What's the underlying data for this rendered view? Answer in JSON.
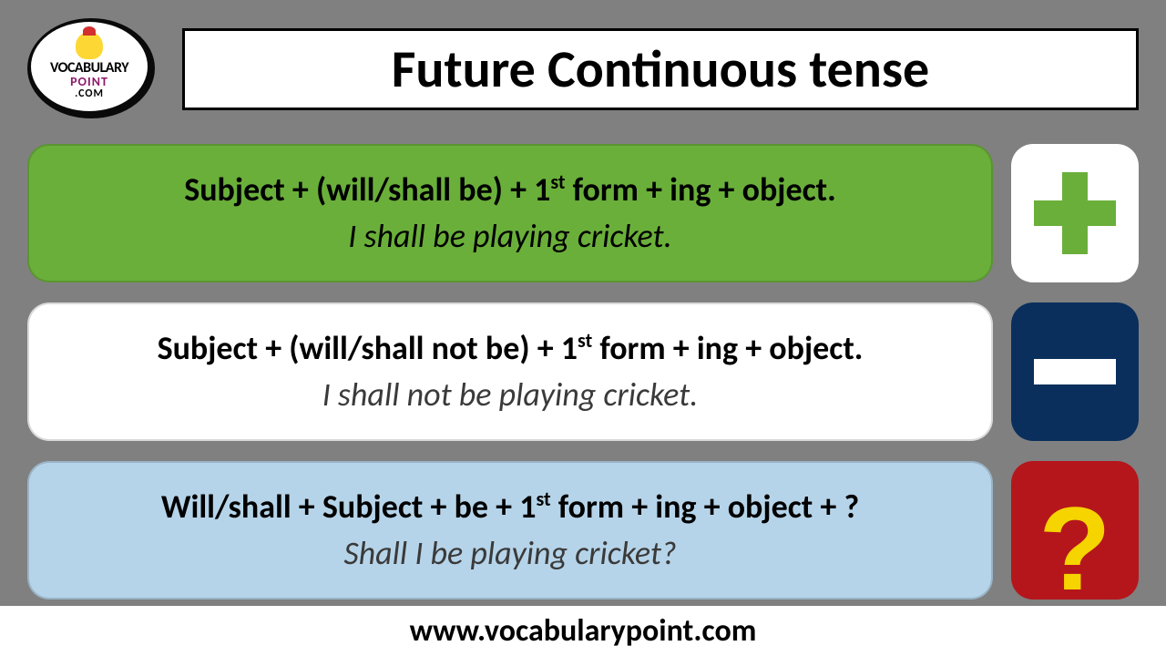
{
  "logo": {
    "line1": "VOCABULARY",
    "line2": "POINT",
    "line3": ".COM"
  },
  "title": "Future Continuous tense",
  "rows": [
    {
      "formula_pre": "Subject + (will/shall be) + 1",
      "formula_sup": "st",
      "formula_post": " form + ing + object.",
      "example": "I shall be playing cricket.",
      "card_bg": "#6aaf3a",
      "example_color": "#000000",
      "icon_bg": "#ffffff",
      "icon_type": "plus"
    },
    {
      "formula_pre": "Subject + (will/shall not be) + 1",
      "formula_sup": "st",
      "formula_post": " form + ing + object.",
      "example": "I shall not be playing cricket.",
      "card_bg": "#ffffff",
      "example_color": "#3a3a3a",
      "icon_bg": "#0a2f5c",
      "icon_type": "minus"
    },
    {
      "formula_pre": "Will/shall + Subject + be + 1",
      "formula_sup": "st",
      "formula_post": " form + ing + object + ?",
      "example": "Shall I be playing cricket?",
      "card_bg": "#b6d4e9",
      "example_color": "#3a3a3a",
      "icon_bg": "#b5161b",
      "icon_type": "question"
    }
  ],
  "footer": "www.vocabularypoint.com",
  "colors": {
    "page_bg": "#808080",
    "title_bg": "#ffffff",
    "title_border": "#000000",
    "plus_color": "#6aaf3a",
    "minus_color": "#ffffff",
    "question_color": "#f5d400"
  }
}
